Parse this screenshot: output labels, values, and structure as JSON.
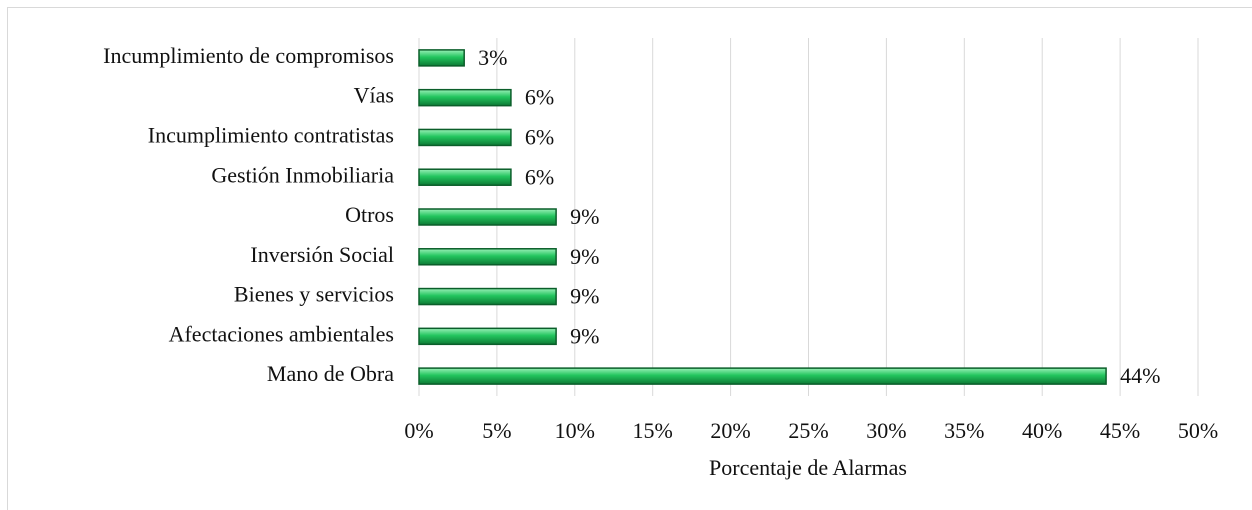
{
  "chart_data": {
    "type": "barh",
    "x_label": "Porcentaje de Alarmas",
    "categories": [
      "Incumplimiento de compromisos",
      "Vías",
      "Incumplimiento contratistas",
      "Gestión Inmobiliaria",
      "Otros",
      "Inversión Social",
      "Bienes y servicios",
      "Afectaciones ambientales",
      "Mano de Obra"
    ],
    "values": [
      2.9,
      5.9,
      5.9,
      5.9,
      8.8,
      8.8,
      8.8,
      8.8,
      44.1
    ],
    "value_labels": [
      "3%",
      "6%",
      "6%",
      "6%",
      "9%",
      "9%",
      "9%",
      "9%",
      "44%"
    ],
    "color": "#22c55e",
    "xlim": [
      0,
      50
    ],
    "xticks": [
      {
        "value": 0,
        "label": "0%"
      },
      {
        "value": 5,
        "label": "5%"
      },
      {
        "value": 10,
        "label": "10%"
      },
      {
        "value": 15,
        "label": "15%"
      },
      {
        "value": 20,
        "label": "20%"
      },
      {
        "value": 25,
        "label": "25%"
      },
      {
        "value": 30,
        "label": "30%"
      },
      {
        "value": 35,
        "label": "35%"
      },
      {
        "value": 40,
        "label": "40%"
      },
      {
        "value": 45,
        "label": "45%"
      },
      {
        "value": 50,
        "label": "50%"
      }
    ],
    "grid": true
  }
}
